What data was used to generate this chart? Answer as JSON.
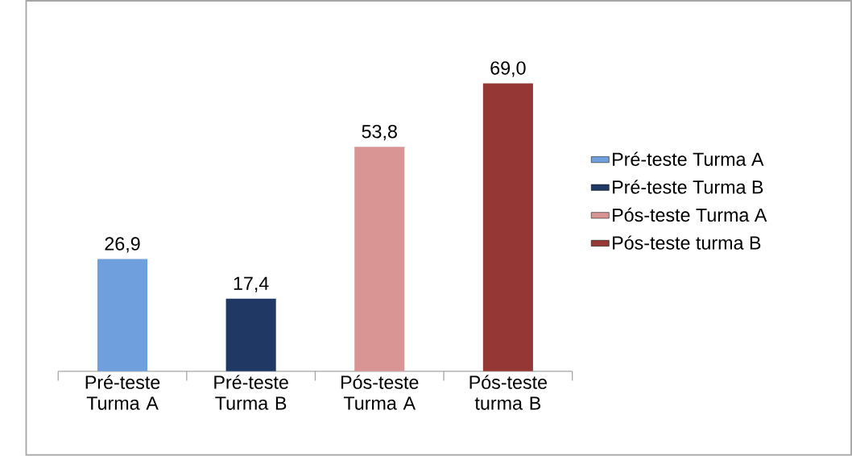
{
  "chart_data": {
    "type": "bar",
    "categories": [
      "Pré-teste Turma A",
      "Pré-teste Turma B",
      "Pós-teste Turma A",
      "Pós-teste turma B"
    ],
    "series": [
      {
        "name": "Pré-teste Turma A",
        "color": "#6f9fdc",
        "values": [
          26.9,
          null,
          null,
          null
        ],
        "value_labels": [
          "26,9",
          null,
          null,
          null
        ]
      },
      {
        "name": "Pré-teste Turma B",
        "color": "#1f3864",
        "values": [
          null,
          17.4,
          null,
          null
        ],
        "value_labels": [
          null,
          "17,4",
          null,
          null
        ]
      },
      {
        "name": "Pós-teste Turma A",
        "color": "#d99594",
        "values": [
          null,
          null,
          53.8,
          null
        ],
        "value_labels": [
          null,
          null,
          "53,8",
          null
        ]
      },
      {
        "name": "Pós-teste turma B",
        "color": "#953735",
        "values": [
          null,
          null,
          null,
          69.0
        ],
        "value_labels": [
          null,
          null,
          null,
          "69,0"
        ]
      }
    ],
    "legend": "right"
  }
}
